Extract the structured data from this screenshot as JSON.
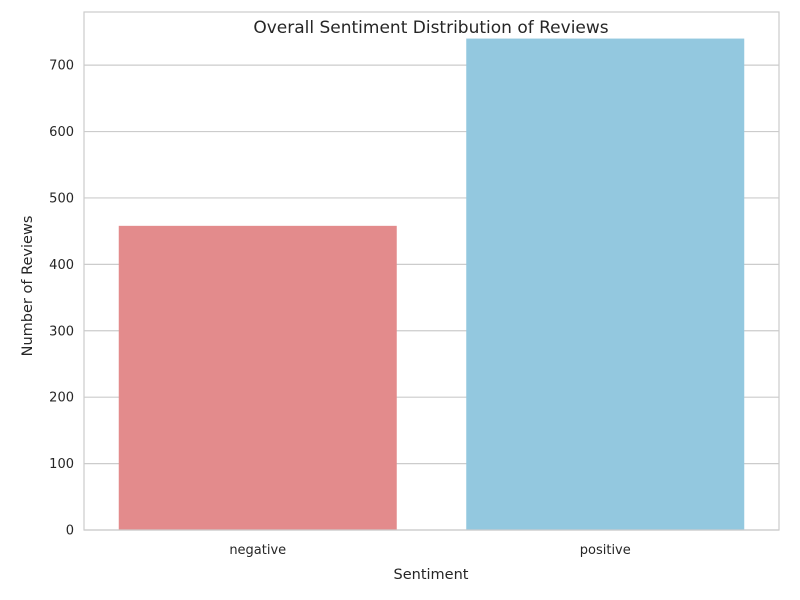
{
  "chart_data": {
    "type": "bar",
    "title": "Overall Sentiment Distribution of Reviews",
    "xlabel": "Sentiment",
    "ylabel": "Number of Reviews",
    "categories": [
      "negative",
      "positive"
    ],
    "values": [
      458,
      740
    ],
    "colors": [
      "#e38b8c",
      "#93c8df"
    ],
    "ylim": [
      0,
      780
    ],
    "yticks": [
      0,
      100,
      200,
      300,
      400,
      500,
      600,
      700
    ],
    "grid": "y"
  }
}
